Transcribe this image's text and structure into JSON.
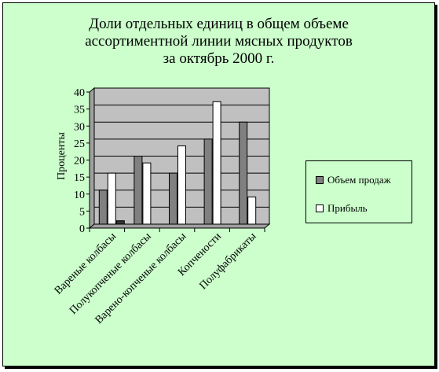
{
  "chart_data": {
    "type": "bar",
    "title_lines": [
      "Доли отдельных единиц в общем объеме",
      "ассортиментной линии мясных продуктов",
      "за октябрь 2000 г."
    ],
    "xlabel": "",
    "ylabel": "Проценты",
    "ylim": [
      0,
      40
    ],
    "yticks": [
      0,
      5,
      10,
      15,
      20,
      25,
      30,
      35,
      40
    ],
    "grid": true,
    "legend_position": "right",
    "categories": [
      "Вареные колбасы",
      "Полукопченые колбасы",
      "Варено-копченые колбасы",
      "Копчености",
      "Полуфабрикаты"
    ],
    "series": [
      {
        "name": "Объем продаж",
        "values": [
          10,
          20,
          15,
          25,
          30
        ]
      },
      {
        "name": "Прибыль",
        "values": [
          15,
          18,
          23,
          36,
          8
        ]
      },
      {
        "name": "",
        "values": [
          1,
          0,
          0,
          0,
          0
        ]
      }
    ],
    "colors": {
      "frame_background": "#ccffcc",
      "plot_background": "#c0c0c0",
      "series": [
        "#808080",
        "#ffffff",
        "#333333"
      ],
      "gridline": "#000000"
    }
  }
}
